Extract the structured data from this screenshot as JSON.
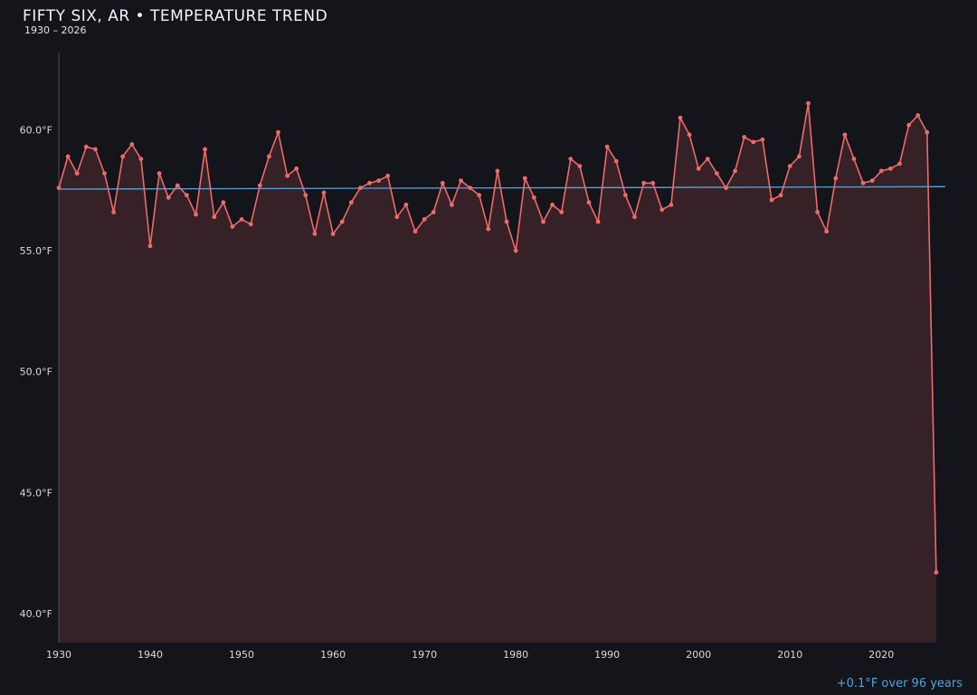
{
  "header": {
    "title": "FIFTY SIX, AR • TEMPERATURE TREND",
    "subtitle": "1930 – 2026"
  },
  "footer": {
    "trend_label": "+0.1°F over 96 years"
  },
  "colors": {
    "background": "#14141b",
    "line": "#ed6a6a",
    "area_fill": "rgba(237,106,106,0.16)",
    "trend": "#58a6dc",
    "tick_text": "#d9d9e0",
    "spine": "#4c4c55",
    "title_text": "#f4f4f6",
    "accent_text": "#4da6e0"
  },
  "chart_data": {
    "type": "line",
    "title": "FIFTY SIX, AR • TEMPERATURE TREND",
    "subtitle": "1930 – 2026",
    "xlabel": "",
    "ylabel": "",
    "legend_position": "none",
    "grid": false,
    "xlim": [
      1930,
      2027
    ],
    "ylim": [
      38.8,
      63.2
    ],
    "yticks": [
      40,
      45,
      50,
      55,
      60
    ],
    "ytick_labels": [
      "40.0°F",
      "45.0°F",
      "50.0°F",
      "55.0°F",
      "60.0°F"
    ],
    "xticks": [
      1930,
      1940,
      1950,
      1960,
      1970,
      1980,
      1990,
      2000,
      2010,
      2020
    ],
    "x": [
      1930,
      1931,
      1932,
      1933,
      1934,
      1935,
      1936,
      1937,
      1938,
      1939,
      1940,
      1941,
      1942,
      1943,
      1944,
      1945,
      1946,
      1947,
      1948,
      1949,
      1950,
      1951,
      1952,
      1953,
      1954,
      1955,
      1956,
      1957,
      1958,
      1959,
      1960,
      1961,
      1962,
      1963,
      1964,
      1965,
      1966,
      1967,
      1968,
      1969,
      1970,
      1971,
      1972,
      1973,
      1974,
      1975,
      1976,
      1977,
      1978,
      1979,
      1980,
      1981,
      1982,
      1983,
      1984,
      1985,
      1986,
      1987,
      1988,
      1989,
      1990,
      1991,
      1992,
      1993,
      1994,
      1995,
      1996,
      1997,
      1998,
      1999,
      2000,
      2001,
      2002,
      2003,
      2004,
      2005,
      2006,
      2007,
      2008,
      2009,
      2010,
      2011,
      2012,
      2013,
      2014,
      2015,
      2016,
      2017,
      2018,
      2019,
      2020,
      2021,
      2022,
      2023,
      2024,
      2025,
      2026
    ],
    "series": [
      {
        "name": "Annual mean temperature (°F)",
        "values": [
          57.6,
          58.9,
          58.2,
          59.3,
          59.2,
          58.2,
          56.6,
          58.9,
          59.4,
          58.8,
          55.2,
          58.2,
          57.2,
          57.7,
          57.3,
          56.5,
          59.2,
          56.4,
          57.0,
          56.0,
          56.3,
          56.1,
          57.7,
          58.9,
          59.9,
          58.1,
          58.4,
          57.3,
          55.7,
          57.4,
          55.7,
          56.2,
          57.0,
          57.6,
          57.8,
          57.9,
          58.1,
          56.4,
          56.9,
          55.8,
          56.3,
          56.6,
          57.8,
          56.9,
          57.9,
          57.6,
          57.3,
          55.9,
          58.3,
          56.2,
          55.0,
          58.0,
          57.2,
          56.2,
          56.9,
          56.6,
          58.8,
          58.5,
          57.0,
          56.2,
          59.3,
          58.7,
          57.3,
          56.4,
          57.8,
          57.8,
          56.7,
          56.9,
          60.5,
          59.8,
          58.4,
          58.8,
          58.2,
          57.6,
          58.3,
          59.7,
          59.5,
          59.6,
          57.1,
          57.3,
          58.5,
          58.9,
          61.1,
          56.6,
          55.8,
          58.0,
          59.8,
          58.8,
          57.8,
          57.9,
          58.3,
          58.4,
          58.6,
          60.2,
          60.6,
          59.9,
          41.7
        ]
      }
    ],
    "trend": {
      "start": 57.55,
      "end": 57.65,
      "label": "+0.1°F over 96 years"
    }
  }
}
